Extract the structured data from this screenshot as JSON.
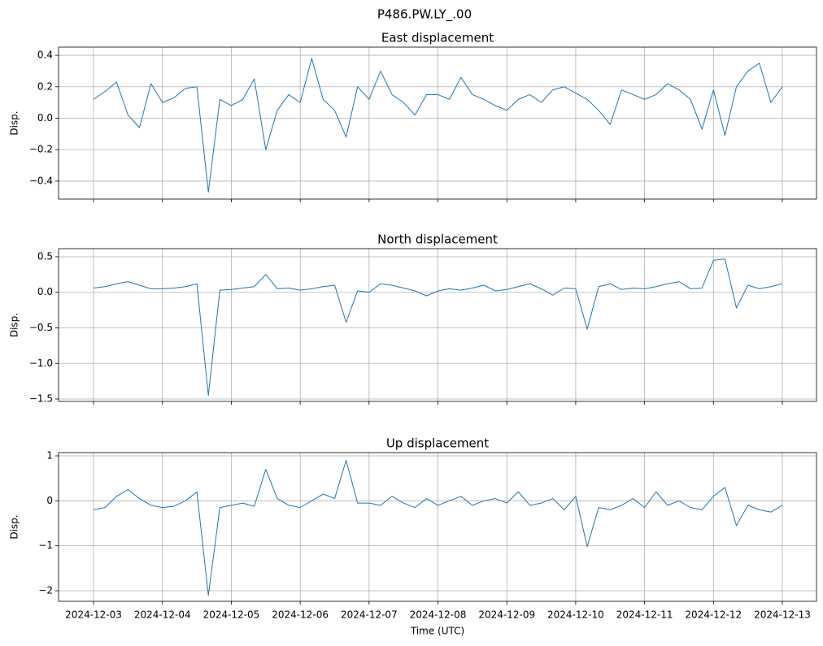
{
  "title": "P486.PW.LY_.00",
  "xlabel": "Time (UTC)",
  "xlim": [
    "2024-12-02 11:48",
    "2024-12-13 11:54"
  ],
  "xticks": [
    "2024-12-03",
    "2024-12-04",
    "2024-12-05",
    "2024-12-06",
    "2024-12-07",
    "2024-12-08",
    "2024-12-09",
    "2024-12-10",
    "2024-12-11",
    "2024-12-12",
    "2024-12-13"
  ],
  "x": [
    "2024-12-03 00:00",
    "2024-12-03 04:00",
    "2024-12-03 08:00",
    "2024-12-03 12:00",
    "2024-12-03 16:00",
    "2024-12-03 20:00",
    "2024-12-04 00:00",
    "2024-12-04 04:00",
    "2024-12-04 08:00",
    "2024-12-04 12:00",
    "2024-12-04 16:00",
    "2024-12-04 20:00",
    "2024-12-05 00:00",
    "2024-12-05 04:00",
    "2024-12-05 08:00",
    "2024-12-05 12:00",
    "2024-12-05 16:00",
    "2024-12-05 20:00",
    "2024-12-06 00:00",
    "2024-12-06 04:00",
    "2024-12-06 08:00",
    "2024-12-06 12:00",
    "2024-12-06 16:00",
    "2024-12-06 20:00",
    "2024-12-07 00:00",
    "2024-12-07 04:00",
    "2024-12-07 08:00",
    "2024-12-07 12:00",
    "2024-12-07 16:00",
    "2024-12-07 20:00",
    "2024-12-08 00:00",
    "2024-12-08 04:00",
    "2024-12-08 08:00",
    "2024-12-08 12:00",
    "2024-12-08 16:00",
    "2024-12-08 20:00",
    "2024-12-09 00:00",
    "2024-12-09 04:00",
    "2024-12-09 08:00",
    "2024-12-09 12:00",
    "2024-12-09 16:00",
    "2024-12-09 20:00",
    "2024-12-10 00:00",
    "2024-12-10 04:00",
    "2024-12-10 08:00",
    "2024-12-10 12:00",
    "2024-12-10 16:00",
    "2024-12-10 20:00",
    "2024-12-11 00:00",
    "2024-12-11 04:00",
    "2024-12-11 08:00",
    "2024-12-11 12:00",
    "2024-12-11 16:00",
    "2024-12-11 20:00",
    "2024-12-12 00:00",
    "2024-12-12 04:00",
    "2024-12-12 08:00",
    "2024-12-12 12:00",
    "2024-12-12 16:00",
    "2024-12-12 20:00",
    "2024-12-13 00:00"
  ],
  "chart_data": [
    {
      "type": "line",
      "title": "East displacement",
      "ylabel": "Disp.",
      "color": "#1f77b4",
      "grid": true,
      "ylim": [
        -0.514,
        0.452
      ],
      "yticks": [
        {
          "value": -0.4,
          "label": "−0.4"
        },
        {
          "value": -0.2,
          "label": "−0.2"
        },
        {
          "value": 0,
          "label": "0.0"
        },
        0.2,
        0.4
      ],
      "values": [
        0.12,
        0.17,
        0.23,
        0.02,
        -0.06,
        0.22,
        0.1,
        0.13,
        0.19,
        0.2,
        -0.47,
        0.12,
        0.08,
        0.12,
        0.25,
        -0.2,
        0.05,
        0.15,
        0.1,
        0.38,
        0.12,
        0.05,
        -0.12,
        0.2,
        0.12,
        0.3,
        0.15,
        0.1,
        0.02,
        0.15,
        0.15,
        0.12,
        0.26,
        0.15,
        0.12,
        0.08,
        0.05,
        0.12,
        0.15,
        0.1,
        0.18,
        0.2,
        0.16,
        0.12,
        0.05,
        -0.04,
        0.18,
        0.15,
        0.12,
        0.15,
        0.22,
        0.18,
        0.12,
        -0.07,
        0.18,
        -0.11,
        0.2,
        0.3,
        0.35,
        0.1,
        0.2
      ]
    },
    {
      "type": "line",
      "title": "North displacement",
      "ylabel": "Disp.",
      "color": "#1f77b4",
      "grid": true,
      "ylim": [
        -1.534,
        0.614
      ],
      "yticks": [
        {
          "value": -1.5,
          "label": "−1.5"
        },
        {
          "value": -1,
          "label": "−1.0"
        },
        {
          "value": -0.5,
          "label": "−0.5"
        },
        {
          "value": 0,
          "label": "0.0"
        },
        0.5
      ],
      "values": [
        0.06,
        0.08,
        0.12,
        0.15,
        0.1,
        0.05,
        0.05,
        0.06,
        0.08,
        0.12,
        -1.45,
        0.03,
        0.04,
        0.06,
        0.08,
        0.25,
        0.05,
        0.06,
        0.03,
        0.05,
        0.08,
        0.1,
        -0.42,
        0.02,
        0.0,
        0.12,
        0.1,
        0.06,
        0.02,
        -0.05,
        0.02,
        0.05,
        0.03,
        0.06,
        0.1,
        0.02,
        0.04,
        0.08,
        0.12,
        0.05,
        -0.04,
        0.06,
        0.05,
        -0.52,
        0.08,
        0.12,
        0.04,
        0.06,
        0.05,
        0.08,
        0.12,
        0.15,
        0.05,
        0.06,
        0.45,
        0.47,
        -0.22,
        0.1,
        0.05,
        0.08,
        0.12
      ]
    },
    {
      "type": "line",
      "title": "Up displacement",
      "ylabel": "Disp.",
      "color": "#1f77b4",
      "grid": true,
      "ylim": [
        -2.235,
        1.072
      ],
      "yticks": [
        {
          "value": -2,
          "label": "−2"
        },
        {
          "value": -1,
          "label": "−1"
        },
        0,
        1
      ],
      "values": [
        -0.2,
        -0.15,
        0.1,
        0.25,
        0.05,
        -0.1,
        -0.15,
        -0.12,
        0.0,
        0.2,
        -2.1,
        -0.15,
        -0.1,
        -0.05,
        -0.12,
        0.7,
        0.05,
        -0.1,
        -0.15,
        0.0,
        0.15,
        0.05,
        0.9,
        -0.05,
        -0.05,
        -0.1,
        0.1,
        -0.05,
        -0.15,
        0.05,
        -0.1,
        0.0,
        0.1,
        -0.1,
        0.0,
        0.05,
        -0.05,
        0.2,
        -0.1,
        -0.05,
        0.05,
        -0.2,
        0.1,
        -1.02,
        -0.15,
        -0.2,
        -0.1,
        0.05,
        -0.15,
        0.2,
        -0.1,
        0.0,
        -0.15,
        -0.2,
        0.1,
        0.3,
        -0.55,
        -0.1,
        -0.2,
        -0.25,
        -0.1
      ]
    }
  ]
}
